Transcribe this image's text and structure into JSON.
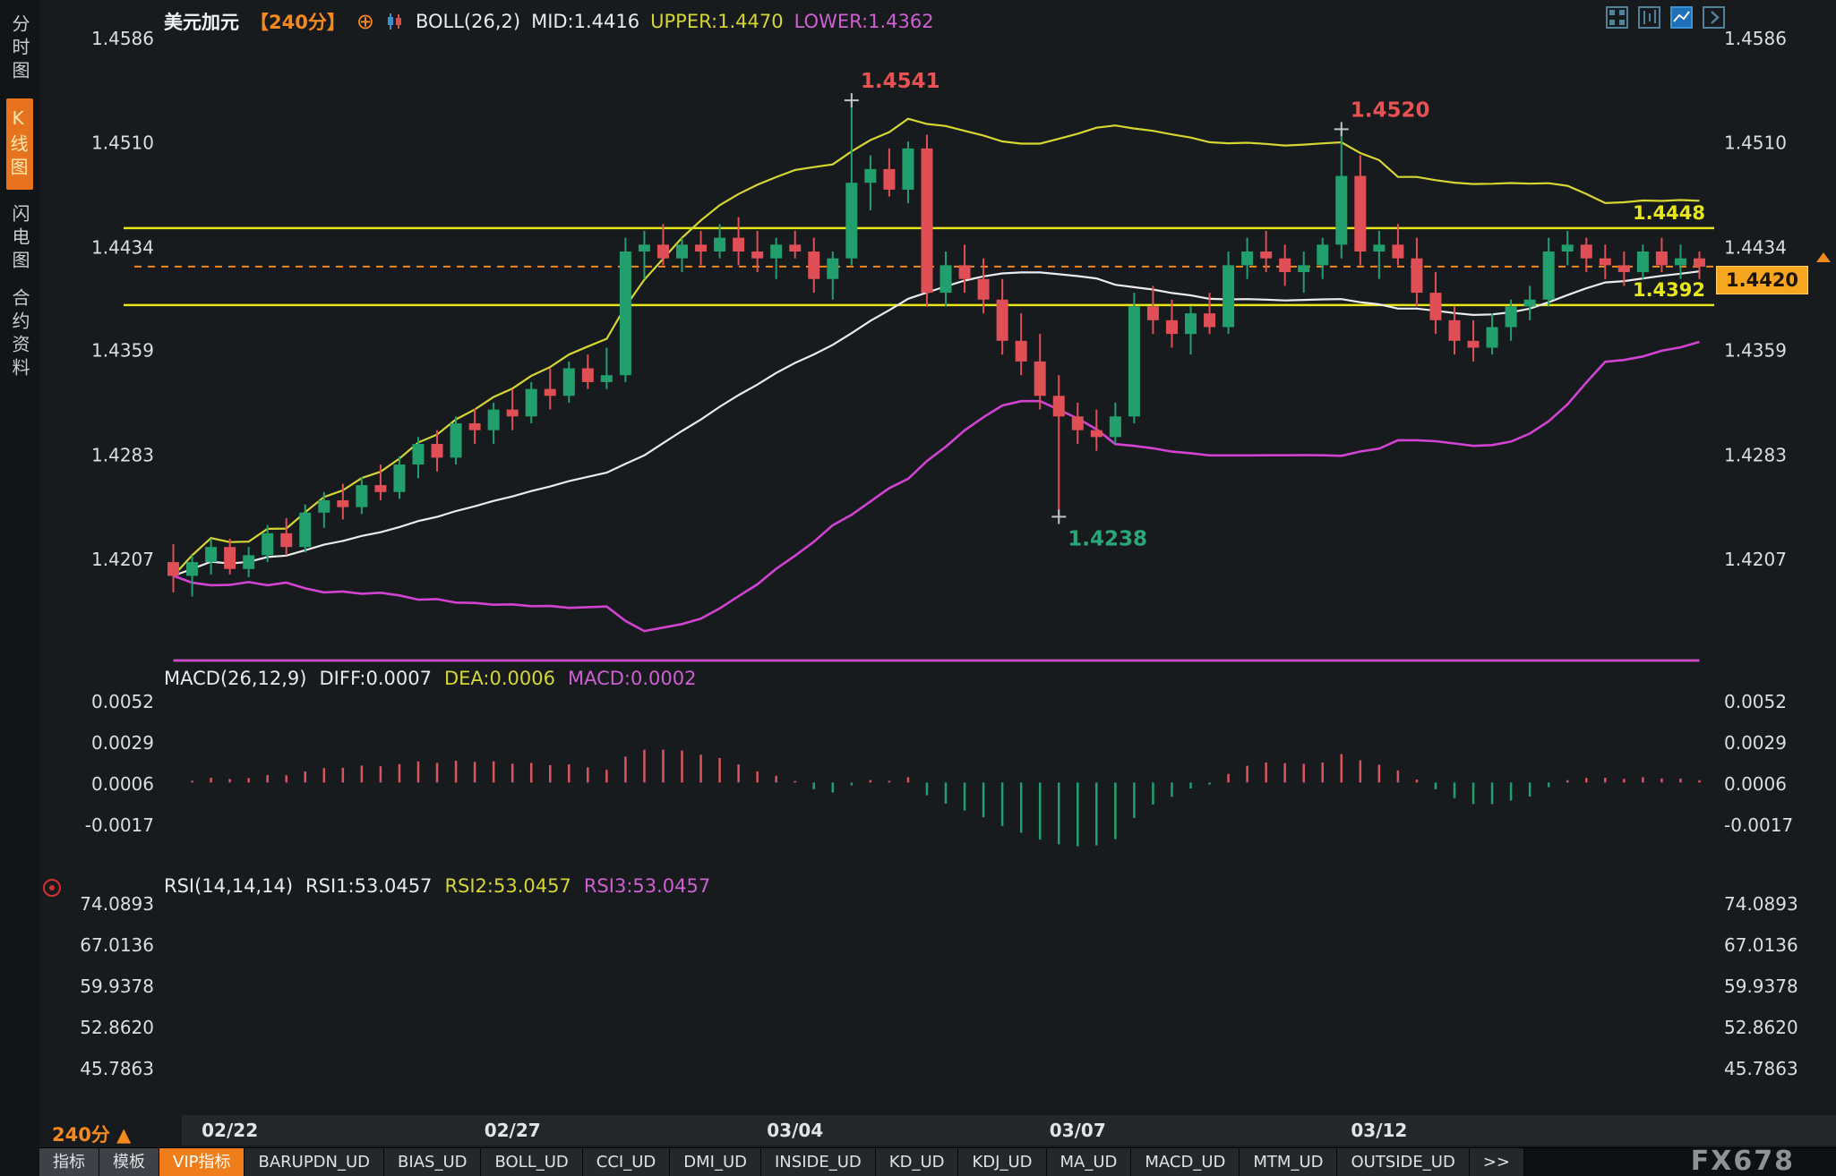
{
  "sidebar": {
    "items": [
      {
        "label": "分时图"
      },
      {
        "label": "K线图"
      },
      {
        "label": "闪电图"
      },
      {
        "label": "合约资料"
      }
    ]
  },
  "header": {
    "title": "美元加元",
    "timeframe": "【240分】",
    "add_icon": "⊕",
    "boll_title": "BOLL(26,2)",
    "boll_mid": "MID:1.4416",
    "boll_upper": "UPPER:1.4470",
    "boll_lower": "LOWER:1.4362"
  },
  "macd_header": {
    "title": "MACD(26,12,9)",
    "diff": "DIFF:0.0007",
    "dea": "DEA:0.0006",
    "macd": "MACD:0.0002"
  },
  "rsi_header": {
    "title": "RSI(14,14,14)",
    "rsi1": "RSI1:53.0457",
    "rsi2": "RSI2:53.0457",
    "rsi3": "RSI3:53.0457"
  },
  "price_box": {
    "label": "1.4420"
  },
  "footer": {
    "timeframe": "240分",
    "arrow": "▲",
    "watermark": "FX678"
  },
  "tabbar": {
    "tabs": [
      {
        "label": "指标",
        "name": "indicators",
        "kind": "btn"
      },
      {
        "label": "模板",
        "name": "templates",
        "kind": "btn"
      },
      {
        "label": "VIP指标",
        "name": "vip-indicators",
        "active": true
      },
      {
        "label": "BARUPDN_UD",
        "name": "barupdn"
      },
      {
        "label": "BIAS_UD",
        "name": "bias"
      },
      {
        "label": "BOLL_UD",
        "name": "boll"
      },
      {
        "label": "CCI_UD",
        "name": "cci"
      },
      {
        "label": "DMI_UD",
        "name": "dmi"
      },
      {
        "label": "INSIDE_UD",
        "name": "inside"
      },
      {
        "label": "KD_UD",
        "name": "kd"
      },
      {
        "label": "KDJ_UD",
        "name": "kdj"
      },
      {
        "label": "MA_UD",
        "name": "ma"
      },
      {
        "label": "MACD_UD",
        "name": "macd"
      },
      {
        "label": "MTM_UD",
        "name": "mtm"
      },
      {
        "label": "OUTSIDE_UD",
        "name": "outside"
      },
      {
        "label": ">>",
        "name": "more"
      }
    ]
  },
  "chart_data": {
    "type": "candlestick",
    "symbol": "美元加元",
    "interval": "240分",
    "main_ticks": [
      1.4586,
      1.451,
      1.4434,
      1.4359,
      1.4283,
      1.4207
    ],
    "macd_ticks": [
      "0.0052",
      "0.0029",
      "0.0006",
      "-0.0017"
    ],
    "rsi_ticks": [
      "74.0893",
      "67.0136",
      "59.9378",
      "52.8620",
      "45.7863"
    ],
    "x_labels": [
      {
        "label": "02/22",
        "index": 3
      },
      {
        "label": "02/27",
        "index": 18
      },
      {
        "label": "03/04",
        "index": 33
      },
      {
        "label": "03/07",
        "index": 48
      },
      {
        "label": "03/12",
        "index": 64
      }
    ],
    "hlines": [
      {
        "value": 1.4448
      },
      {
        "value": 1.4392
      }
    ],
    "current_price": {
      "value": 1.442
    },
    "annotations": [
      {
        "text": "1.4541",
        "index": 36,
        "price": 1.4541,
        "pos": "above",
        "color": "#e85252"
      },
      {
        "text": "1.4520",
        "index": 62,
        "price": 1.452,
        "pos": "above",
        "color": "#e85252"
      },
      {
        "text": "1.4238",
        "index": 47,
        "price": 1.4238,
        "pos": "below",
        "color": "#29a878"
      }
    ],
    "indicators": {
      "boll": {
        "period": 26,
        "mult": 2
      },
      "macd": {
        "fast": 12,
        "slow": 26,
        "signal": 9
      },
      "rsi": {
        "period": 14
      }
    },
    "colors": {
      "up": "#21a06e",
      "down": "#e04e56",
      "boll_mid": "#ebebeb",
      "boll_upper": "#d6d632",
      "boll_lower": "#d243d2",
      "hline": "#e6e61a",
      "current_line": "#f08a1e",
      "macd_diff": "#ebebeb",
      "macd_dea": "#d6d632",
      "macd_pos": "#d8565e",
      "macd_neg": "#21a06e",
      "rsi1": "#ebebeb",
      "rsi2": "#d6d632",
      "rsi3": "#d243d2",
      "axis_text": "#dcdee0",
      "accent_orange": "#f5891d"
    },
    "ohlc": [
      [
        1.4205,
        1.4218,
        1.4183,
        1.4195
      ],
      [
        1.4195,
        1.421,
        1.418,
        1.4205
      ],
      [
        1.4205,
        1.4222,
        1.4196,
        1.4216
      ],
      [
        1.4216,
        1.4222,
        1.4196,
        1.42
      ],
      [
        1.42,
        1.4216,
        1.4194,
        1.421
      ],
      [
        1.421,
        1.4232,
        1.4205,
        1.4226
      ],
      [
        1.4226,
        1.4237,
        1.421,
        1.4216
      ],
      [
        1.4216,
        1.4247,
        1.4212,
        1.4241
      ],
      [
        1.4241,
        1.4256,
        1.423,
        1.425
      ],
      [
        1.425,
        1.4262,
        1.4236,
        1.4245
      ],
      [
        1.4245,
        1.4267,
        1.424,
        1.4261
      ],
      [
        1.4261,
        1.4276,
        1.425,
        1.4256
      ],
      [
        1.4256,
        1.4282,
        1.4251,
        1.4276
      ],
      [
        1.4276,
        1.4296,
        1.4266,
        1.4291
      ],
      [
        1.4291,
        1.4301,
        1.4271,
        1.4281
      ],
      [
        1.4281,
        1.4311,
        1.4276,
        1.4306
      ],
      [
        1.4306,
        1.4317,
        1.4291,
        1.4301
      ],
      [
        1.4301,
        1.4321,
        1.4291,
        1.4316
      ],
      [
        1.4316,
        1.4331,
        1.4301,
        1.4311
      ],
      [
        1.4311,
        1.4336,
        1.4306,
        1.4331
      ],
      [
        1.4331,
        1.4346,
        1.4316,
        1.4326
      ],
      [
        1.4326,
        1.4351,
        1.4321,
        1.4346
      ],
      [
        1.4346,
        1.4356,
        1.4331,
        1.4336
      ],
      [
        1.4336,
        1.4361,
        1.4331,
        1.4341
      ],
      [
        1.4341,
        1.4441,
        1.4336,
        1.4431
      ],
      [
        1.4431,
        1.4446,
        1.4411,
        1.4436
      ],
      [
        1.4436,
        1.4451,
        1.4421,
        1.4426
      ],
      [
        1.4426,
        1.4441,
        1.4416,
        1.4436
      ],
      [
        1.4436,
        1.4446,
        1.4421,
        1.4431
      ],
      [
        1.4431,
        1.4451,
        1.4426,
        1.4441
      ],
      [
        1.4441,
        1.4456,
        1.4421,
        1.4431
      ],
      [
        1.4431,
        1.4446,
        1.4416,
        1.4426
      ],
      [
        1.4426,
        1.4441,
        1.4411,
        1.4436
      ],
      [
        1.4436,
        1.4446,
        1.4426,
        1.4431
      ],
      [
        1.4431,
        1.4441,
        1.4401,
        1.4411
      ],
      [
        1.4411,
        1.4431,
        1.4396,
        1.4426
      ],
      [
        1.4426,
        1.4541,
        1.4421,
        1.4481
      ],
      [
        1.4481,
        1.4501,
        1.4461,
        1.4491
      ],
      [
        1.4491,
        1.4506,
        1.4471,
        1.4476
      ],
      [
        1.4476,
        1.4511,
        1.4466,
        1.4506
      ],
      [
        1.4506,
        1.4516,
        1.4391,
        1.4401
      ],
      [
        1.4401,
        1.4431,
        1.4391,
        1.4421
      ],
      [
        1.4421,
        1.4436,
        1.4401,
        1.4411
      ],
      [
        1.4411,
        1.4426,
        1.4386,
        1.4396
      ],
      [
        1.4396,
        1.4411,
        1.4356,
        1.4366
      ],
      [
        1.4366,
        1.4386,
        1.4341,
        1.4351
      ],
      [
        1.4351,
        1.4371,
        1.4316,
        1.4326
      ],
      [
        1.4326,
        1.4341,
        1.4238,
        1.4311
      ],
      [
        1.4311,
        1.4321,
        1.4291,
        1.4301
      ],
      [
        1.4301,
        1.4316,
        1.4286,
        1.4296
      ],
      [
        1.4296,
        1.4321,
        1.4291,
        1.4311
      ],
      [
        1.4311,
        1.4401,
        1.4306,
        1.4391
      ],
      [
        1.4391,
        1.4406,
        1.4371,
        1.4381
      ],
      [
        1.4381,
        1.4396,
        1.4361,
        1.4371
      ],
      [
        1.4371,
        1.4391,
        1.4356,
        1.4386
      ],
      [
        1.4386,
        1.4401,
        1.4371,
        1.4376
      ],
      [
        1.4376,
        1.4431,
        1.4371,
        1.4421
      ],
      [
        1.4421,
        1.4441,
        1.4411,
        1.4431
      ],
      [
        1.4431,
        1.4446,
        1.4416,
        1.4426
      ],
      [
        1.4426,
        1.4436,
        1.4406,
        1.4416
      ],
      [
        1.4416,
        1.4431,
        1.4401,
        1.4421
      ],
      [
        1.4421,
        1.4441,
        1.4411,
        1.4436
      ],
      [
        1.4436,
        1.452,
        1.4426,
        1.4486
      ],
      [
        1.4486,
        1.4501,
        1.4421,
        1.4431
      ],
      [
        1.4431,
        1.4446,
        1.4411,
        1.4436
      ],
      [
        1.4436,
        1.4451,
        1.4421,
        1.4426
      ],
      [
        1.4426,
        1.4441,
        1.4391,
        1.4401
      ],
      [
        1.4401,
        1.4416,
        1.4371,
        1.4381
      ],
      [
        1.4381,
        1.4391,
        1.4356,
        1.4366
      ],
      [
        1.4366,
        1.4381,
        1.4351,
        1.4361
      ],
      [
        1.4361,
        1.4386,
        1.4356,
        1.4376
      ],
      [
        1.4376,
        1.4396,
        1.4366,
        1.4391
      ],
      [
        1.4391,
        1.4406,
        1.4381,
        1.4396
      ],
      [
        1.4396,
        1.4441,
        1.4391,
        1.4431
      ],
      [
        1.4431,
        1.4446,
        1.4421,
        1.4436
      ],
      [
        1.4436,
        1.4441,
        1.4416,
        1.4426
      ],
      [
        1.4426,
        1.4436,
        1.4411,
        1.4421
      ],
      [
        1.4421,
        1.4431,
        1.4406,
        1.4416
      ],
      [
        1.4416,
        1.4436,
        1.4411,
        1.4431
      ],
      [
        1.4431,
        1.4441,
        1.4416,
        1.4421
      ],
      [
        1.4421,
        1.4436,
        1.4411,
        1.4426
      ],
      [
        1.4426,
        1.4431,
        1.4411,
        1.442
      ]
    ]
  }
}
